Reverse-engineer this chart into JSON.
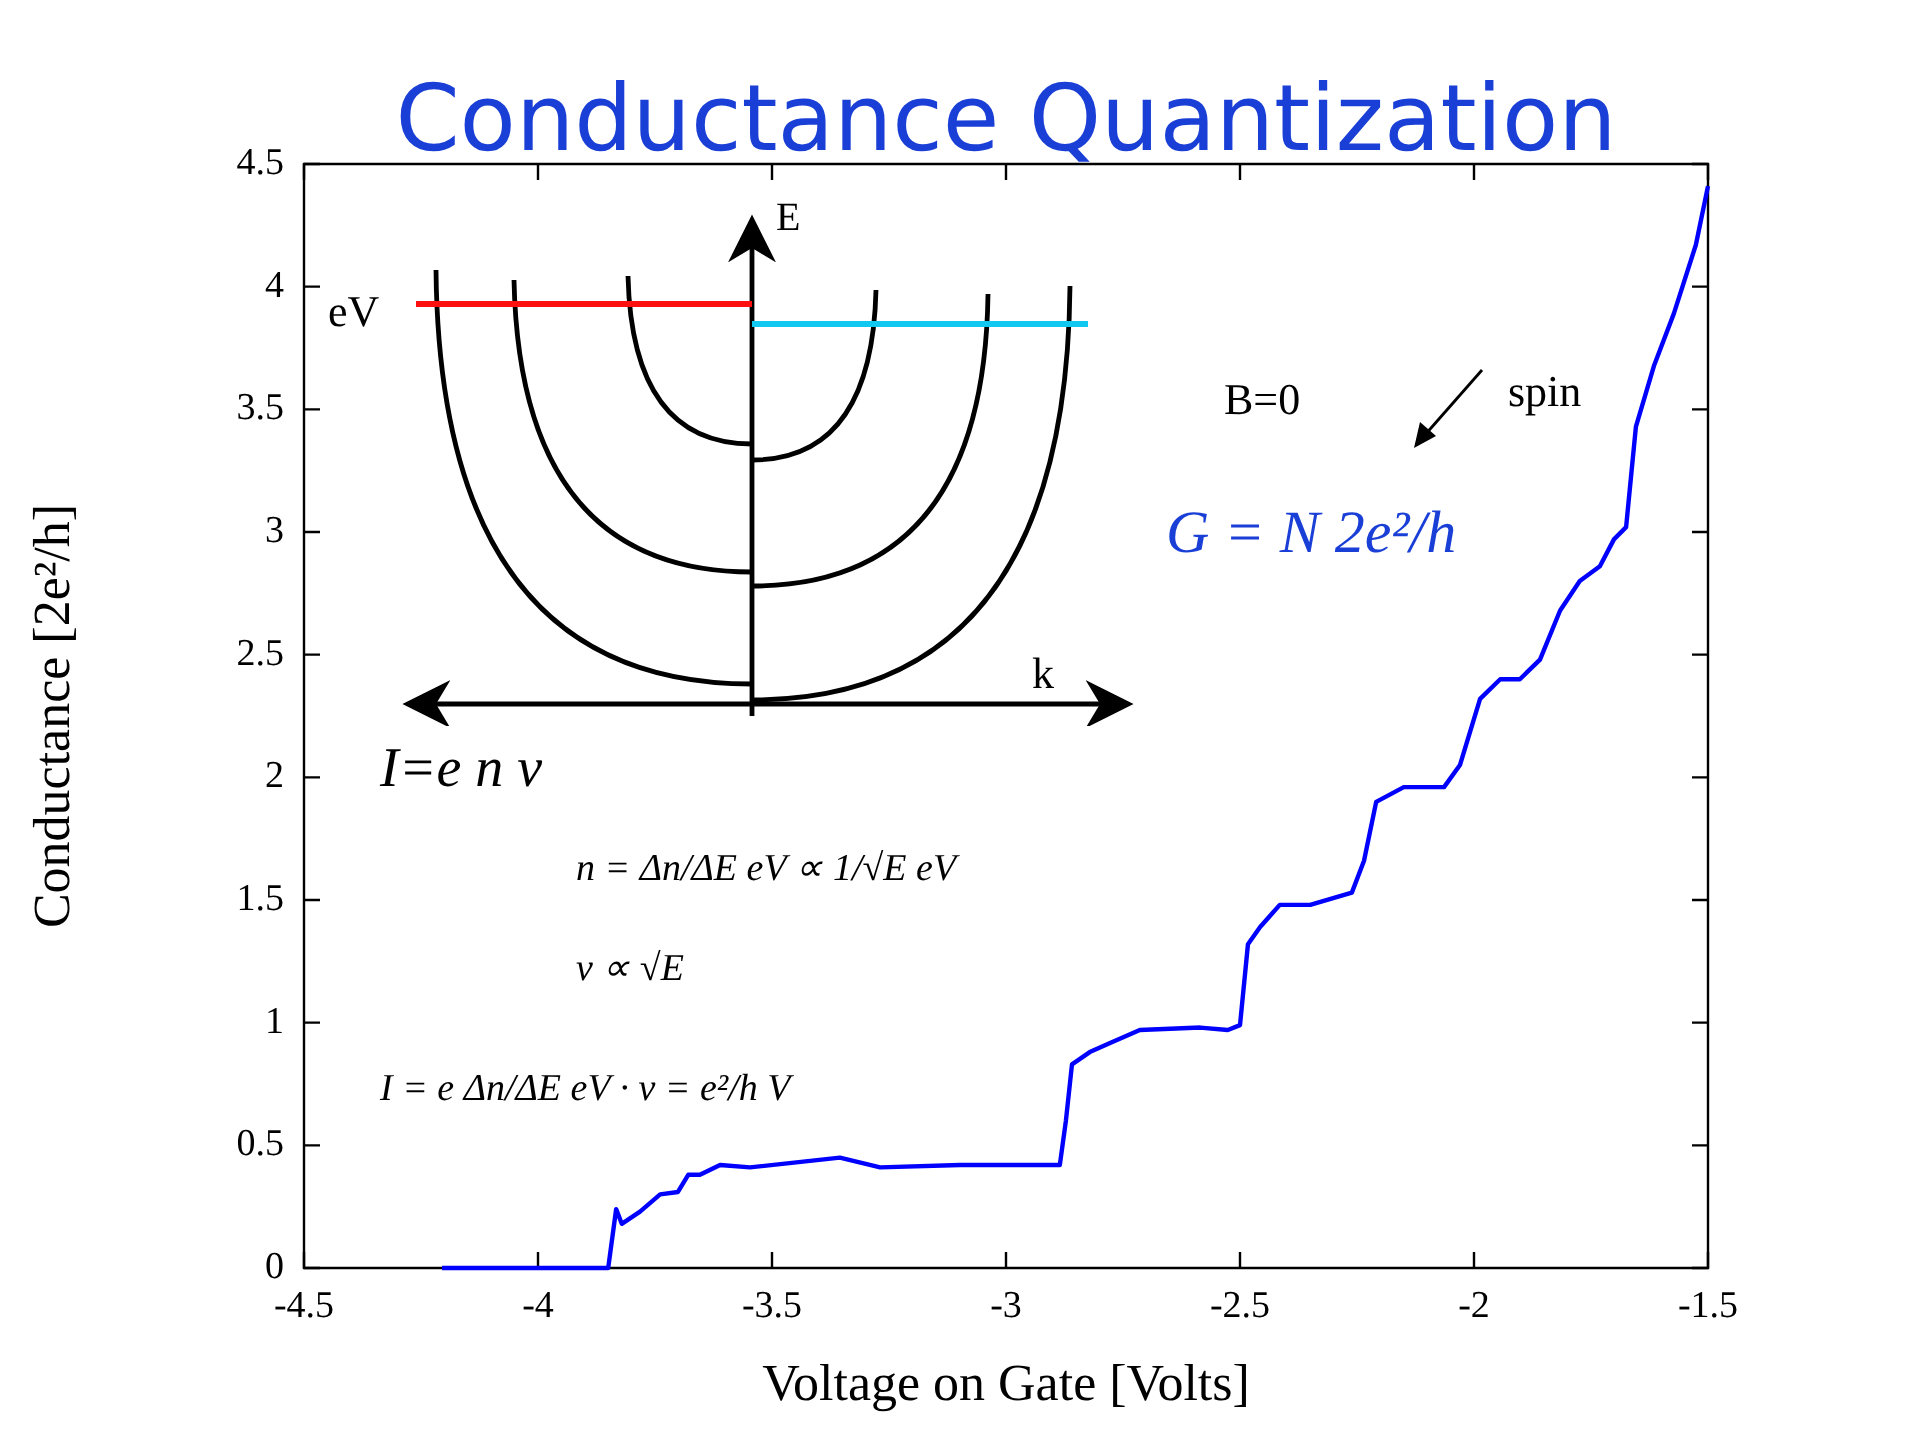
{
  "chart_data": {
    "type": "line",
    "title": "Conductance Quantization",
    "xlabel": "Voltage on Gate [Volts]",
    "ylabel": "Conductance [2e²/h]",
    "xlim": [
      -4.5,
      -1.5
    ],
    "xticks": [
      -4.5,
      -4,
      -3.5,
      -3,
      -2.5,
      -2,
      -1.5
    ],
    "ylim": [
      0,
      4.5
    ],
    "yticks": [
      0,
      0.5,
      1,
      1.5,
      2,
      2.5,
      3,
      3.5,
      4,
      4.5
    ],
    "grid": false,
    "legend": false,
    "series": [
      {
        "color": "#0000ff",
        "x": [
          -4.205,
          -3.85,
          -3.833,
          -3.821,
          -3.782,
          -3.739,
          -3.701,
          -3.679,
          -3.654,
          -3.611,
          -3.547,
          -3.355,
          -3.269,
          -3.098,
          -2.885,
          -2.872,
          -2.859,
          -2.821,
          -2.774,
          -2.714,
          -2.585,
          -2.526,
          -2.5,
          -2.483,
          -2.457,
          -2.415,
          -2.35,
          -2.261,
          -2.235,
          -2.209,
          -2.15,
          -2.064,
          -2.03,
          -1.987,
          -1.944,
          -1.902,
          -1.859,
          -1.816,
          -1.774,
          -1.731,
          -1.701,
          -1.675,
          -1.654,
          -1.615,
          -1.573,
          -1.526,
          -1.5
        ],
        "values": [
          0,
          0,
          0.24,
          0.18,
          0.23,
          0.3,
          0.31,
          0.38,
          0.38,
          0.42,
          0.41,
          0.45,
          0.41,
          0.42,
          0.42,
          0.6,
          0.83,
          0.88,
          0.92,
          0.97,
          0.98,
          0.97,
          0.99,
          1.32,
          1.39,
          1.48,
          1.48,
          1.53,
          1.66,
          1.9,
          1.96,
          1.96,
          2.05,
          2.32,
          2.4,
          2.4,
          2.48,
          2.68,
          2.8,
          2.86,
          2.97,
          3.02,
          3.43,
          3.68,
          3.89,
          4.17,
          4.41
        ]
      }
    ],
    "annotations": [
      "E",
      "k",
      "eV",
      "B=0",
      "spin",
      "G = N 2e²/h",
      "I=e n v",
      "n = Δn/ΔE eV ∝ 1/√E eV",
      "v ∝ √E",
      "I = e Δn/ΔE eV · v = e²/h V"
    ]
  }
}
